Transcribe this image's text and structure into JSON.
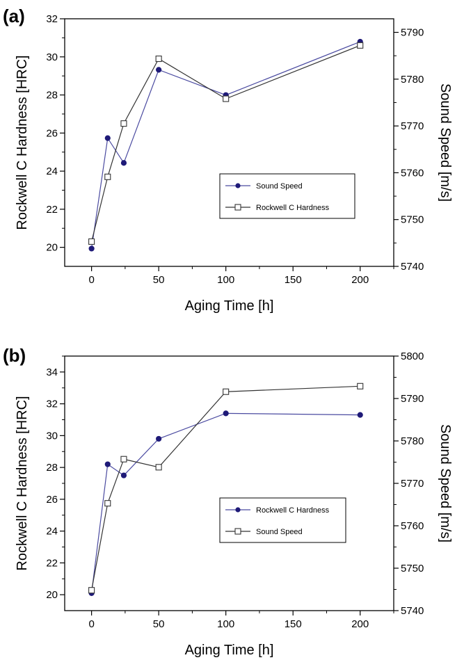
{
  "chart_data": [
    {
      "panel_label": "(a)",
      "type": "line",
      "xlabel": "Aging Time [h]",
      "ylabel_left": "Rockwell C Hardness [HRC]",
      "ylabel_right": "Sound Speed [m/s]",
      "xlim": [
        -20,
        225
      ],
      "xticks": [
        "0",
        "50",
        "100",
        "150",
        "200"
      ],
      "ylim_left": [
        19,
        32
      ],
      "yticks_left": [
        "20",
        "22",
        "24",
        "26",
        "28",
        "30",
        "32"
      ],
      "ylim_right": [
        5740,
        5792.9
      ],
      "yticks_right": [
        "5740",
        "5750",
        "5760",
        "5770",
        "5780",
        "5790"
      ],
      "legend_position": "center-right",
      "series": [
        {
          "name": "Sound Speed",
          "axis": "right",
          "marker": "filled-circle",
          "color": "#4a4aa0",
          "marker_color": "#1f1a78",
          "x": [
            0,
            12,
            24,
            50,
            100,
            200
          ],
          "values": [
            5743.8,
            5767.4,
            5762.1,
            5782.0,
            5776.6,
            5788.0
          ]
        },
        {
          "name": "Rockwell C Hardness",
          "axis": "left",
          "marker": "open-square",
          "color": "#333333",
          "marker_color": "#333333",
          "x": [
            0,
            12,
            24,
            50,
            100,
            200
          ],
          "values": [
            20.3,
            23.7,
            26.5,
            29.9,
            27.8,
            30.6
          ]
        }
      ]
    },
    {
      "panel_label": "(b)",
      "type": "line",
      "xlabel": "Aging Time [h]",
      "ylabel_left": "Rockwell C Hardness [HRC]",
      "ylabel_right": "Sound Speed [m/s]",
      "xlim": [
        -20,
        225
      ],
      "xticks": [
        "0",
        "50",
        "100",
        "150",
        "200"
      ],
      "ylim_left": [
        19,
        35
      ],
      "yticks_left": [
        "20",
        "22",
        "24",
        "26",
        "28",
        "30",
        "32",
        "34"
      ],
      "ylim_right": [
        5740,
        5800
      ],
      "yticks_right": [
        "5740",
        "5750",
        "5760",
        "5770",
        "5780",
        "5790",
        "5800"
      ],
      "legend_position": "center-right",
      "series": [
        {
          "name": "Rockwell C Hardness",
          "axis": "left",
          "marker": "filled-circle",
          "color": "#4a4aa0",
          "marker_color": "#1f1a78",
          "x": [
            0,
            12,
            24,
            50,
            100,
            200
          ],
          "values": [
            20.1,
            28.2,
            27.5,
            29.8,
            31.4,
            31.3
          ]
        },
        {
          "name": "Sound Speed",
          "axis": "right",
          "marker": "open-square",
          "color": "#333333",
          "marker_color": "#333333",
          "x": [
            0,
            12,
            24,
            50,
            100,
            200
          ],
          "values": [
            5744.8,
            5765.3,
            5775.7,
            5773.8,
            5791.6,
            5792.9
          ]
        }
      ]
    }
  ]
}
